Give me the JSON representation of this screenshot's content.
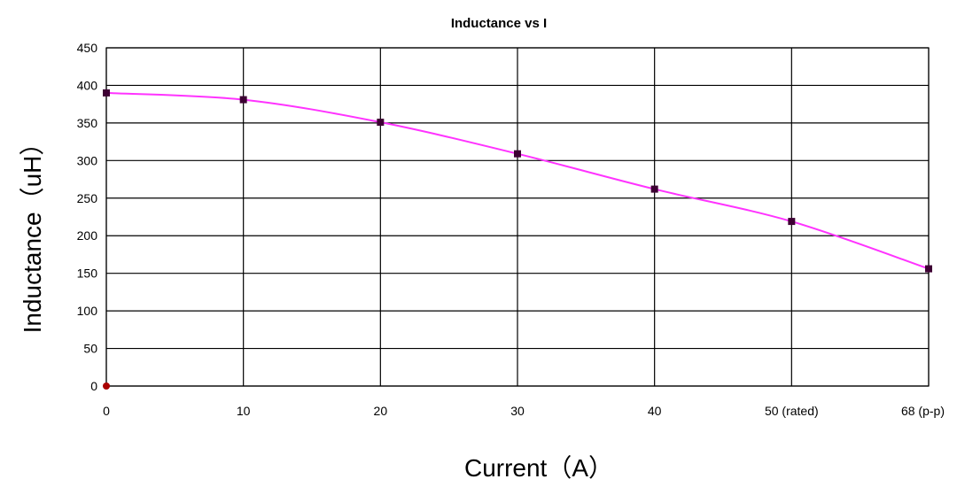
{
  "chart_data": {
    "type": "line",
    "title": "Inductance vs I",
    "xlabel": "Current（A）",
    "ylabel": "Inductance（uH）",
    "categories": [
      "0",
      "10",
      "20",
      "30",
      "40",
      "50 (rated)",
      "68 (p-p)"
    ],
    "y_ticks": [
      "0",
      "50",
      "100",
      "150",
      "200",
      "250",
      "300",
      "350",
      "400",
      "450"
    ],
    "ylim": [
      0,
      450
    ],
    "grid": true,
    "series": [
      {
        "values": [
          390,
          381,
          351,
          309,
          262,
          219,
          156
        ]
      }
    ],
    "extra_point": {
      "category_index": 0,
      "value": 0
    },
    "colors": {
      "line": "#ff33ff",
      "marker": "#3d0033",
      "extra_point": "#aa0000"
    }
  }
}
